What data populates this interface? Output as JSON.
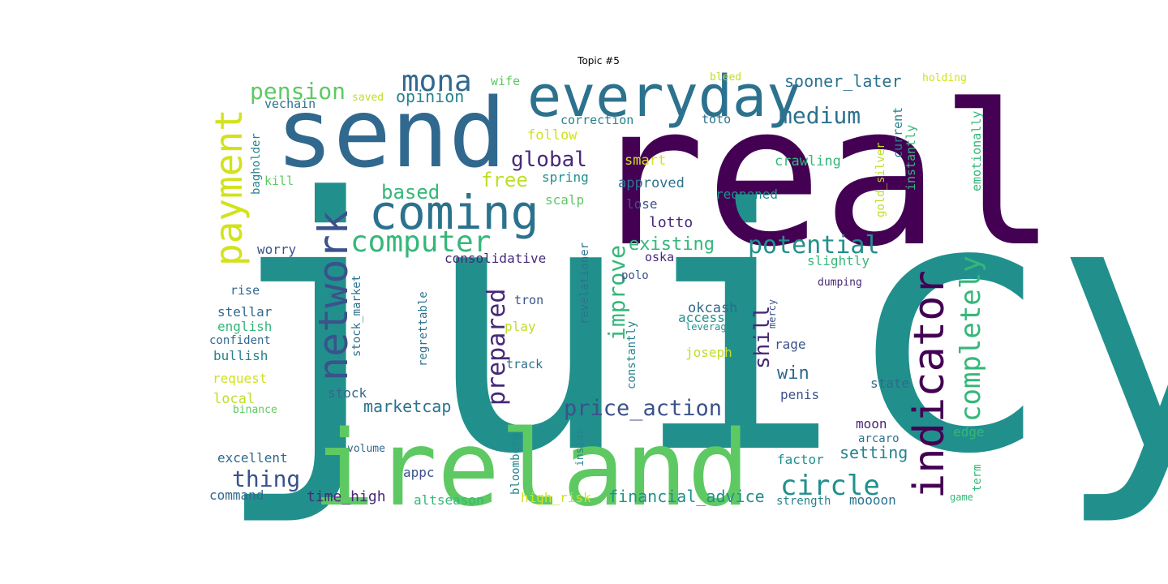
{
  "title": "Topic #5",
  "palette": "viridis",
  "words": [
    {
      "text": "juicy",
      "color": "#21908d"
    },
    {
      "text": "real",
      "color": "#440154"
    },
    {
      "text": "send",
      "color": "#31688e"
    },
    {
      "text": "ireland",
      "color": "#5ec962"
    },
    {
      "text": "everyday",
      "color": "#2c728e"
    },
    {
      "text": "indicator",
      "color": "#440154"
    },
    {
      "text": "coming",
      "color": "#2c728e"
    },
    {
      "text": "network",
      "color": "#3b528b"
    },
    {
      "text": "payment",
      "color": "#d2e21b"
    },
    {
      "text": "computer",
      "color": "#35b779"
    },
    {
      "text": "completely",
      "color": "#35b779"
    },
    {
      "text": "circle",
      "color": "#21908d"
    },
    {
      "text": "mona",
      "color": "#31688e"
    },
    {
      "text": "potential",
      "color": "#21908d"
    },
    {
      "text": "price_action",
      "color": "#3b528b"
    },
    {
      "text": "improve",
      "color": "#35b779"
    },
    {
      "text": "prepared",
      "color": "#482878"
    },
    {
      "text": "pension",
      "color": "#5ec962"
    },
    {
      "text": "medium",
      "color": "#2c728e"
    },
    {
      "text": "global",
      "color": "#482878"
    },
    {
      "text": "thing",
      "color": "#3b528b"
    },
    {
      "text": "shill",
      "color": "#482878"
    },
    {
      "text": "based",
      "color": "#35b779"
    },
    {
      "text": "free",
      "color": "#bddf26"
    },
    {
      "text": "opinion",
      "color": "#26828e"
    },
    {
      "text": "sooner_later",
      "color": "#2c728e"
    },
    {
      "text": "existing",
      "color": "#35b779"
    },
    {
      "text": "marketcap",
      "color": "#2c728e"
    },
    {
      "text": "financial_advice",
      "color": "#21908d"
    },
    {
      "text": "win",
      "color": "#31688e"
    },
    {
      "text": "setting",
      "color": "#26828e"
    },
    {
      "text": "time_high",
      "color": "#482878"
    },
    {
      "text": "lotto",
      "color": "#482878"
    },
    {
      "text": "smart",
      "color": "#d2e21b"
    },
    {
      "text": "crawling",
      "color": "#35b779"
    },
    {
      "text": "reopened",
      "color": "#21908d"
    },
    {
      "text": "approved",
      "color": "#2c728e"
    },
    {
      "text": "lose",
      "color": "#3b528b"
    },
    {
      "text": "okcash",
      "color": "#31688e"
    },
    {
      "text": "consolidative",
      "color": "#482878"
    },
    {
      "text": "worry",
      "color": "#3b528b"
    },
    {
      "text": "stellar",
      "color": "#31688e"
    },
    {
      "text": "english",
      "color": "#35b779"
    },
    {
      "text": "bullish",
      "color": "#26828e"
    },
    {
      "text": "request",
      "color": "#d2e21b"
    },
    {
      "text": "local",
      "color": "#bddf26"
    },
    {
      "text": "excellent",
      "color": "#31688e"
    },
    {
      "text": "command",
      "color": "#31688e"
    },
    {
      "text": "altseason",
      "color": "#35b779"
    },
    {
      "text": "high_risk",
      "color": "#d2e21b"
    },
    {
      "text": "moooon",
      "color": "#2c728e"
    },
    {
      "text": "factor",
      "color": "#21908d"
    },
    {
      "text": "edge",
      "color": "#35b779"
    },
    {
      "text": "state",
      "color": "#31688e"
    },
    {
      "text": "moon",
      "color": "#482878"
    },
    {
      "text": "penis",
      "color": "#3b528b"
    },
    {
      "text": "rage",
      "color": "#3b528b"
    },
    {
      "text": "joseph",
      "color": "#bddf26"
    },
    {
      "text": "access",
      "color": "#21908d"
    },
    {
      "text": "play",
      "color": "#bddf26"
    },
    {
      "text": "track",
      "color": "#2c728e"
    },
    {
      "text": "stock",
      "color": "#31688e"
    },
    {
      "text": "appc",
      "color": "#3b528b"
    },
    {
      "text": "spring",
      "color": "#21908d"
    },
    {
      "text": "scalp",
      "color": "#5ec962"
    },
    {
      "text": "follow",
      "color": "#d2e21b"
    },
    {
      "text": "correction",
      "color": "#26828e"
    },
    {
      "text": "toto",
      "color": "#2c728e"
    },
    {
      "text": "wife",
      "color": "#5ec962"
    },
    {
      "text": "saved",
      "color": "#bddf26"
    },
    {
      "text": "vechain",
      "color": "#2c728e"
    },
    {
      "text": "kill",
      "color": "#5ec962"
    },
    {
      "text": "rise",
      "color": "#31688e"
    },
    {
      "text": "confident",
      "color": "#31688e"
    },
    {
      "text": "binance",
      "color": "#5ec962"
    },
    {
      "text": "volume",
      "color": "#31688e"
    },
    {
      "text": "polo",
      "color": "#3b528b"
    },
    {
      "text": "oska",
      "color": "#482878"
    },
    {
      "text": "tron",
      "color": "#3b528b"
    },
    {
      "text": "slightly",
      "color": "#35b779"
    },
    {
      "text": "dumping",
      "color": "#482878"
    },
    {
      "text": "leverage",
      "color": "#21908d"
    },
    {
      "text": "arcaro",
      "color": "#2c728e"
    },
    {
      "text": "strength",
      "color": "#26828e"
    },
    {
      "text": "game",
      "color": "#35b779"
    },
    {
      "text": "bleed",
      "color": "#bddf26"
    },
    {
      "text": "holding",
      "color": "#d2e21b"
    },
    {
      "text": "bagholder",
      "color": "#26828e"
    },
    {
      "text": "stock_market",
      "color": "#2c728e"
    },
    {
      "text": "regrettable",
      "color": "#2c728e"
    },
    {
      "text": "revelationer",
      "color": "#2c728e"
    },
    {
      "text": "constantly",
      "color": "#26828e"
    },
    {
      "text": "bloomberg",
      "color": "#26828e"
    },
    {
      "text": "inside",
      "color": "#26828e"
    },
    {
      "text": "mercy",
      "color": "#3b528b"
    },
    {
      "text": "gold_silver",
      "color": "#bddf26"
    },
    {
      "text": "instantly",
      "color": "#35b779"
    },
    {
      "text": "current",
      "color": "#26828e"
    },
    {
      "text": "emotionally",
      "color": "#35b779"
    },
    {
      "text": "term",
      "color": "#35b779"
    }
  ]
}
